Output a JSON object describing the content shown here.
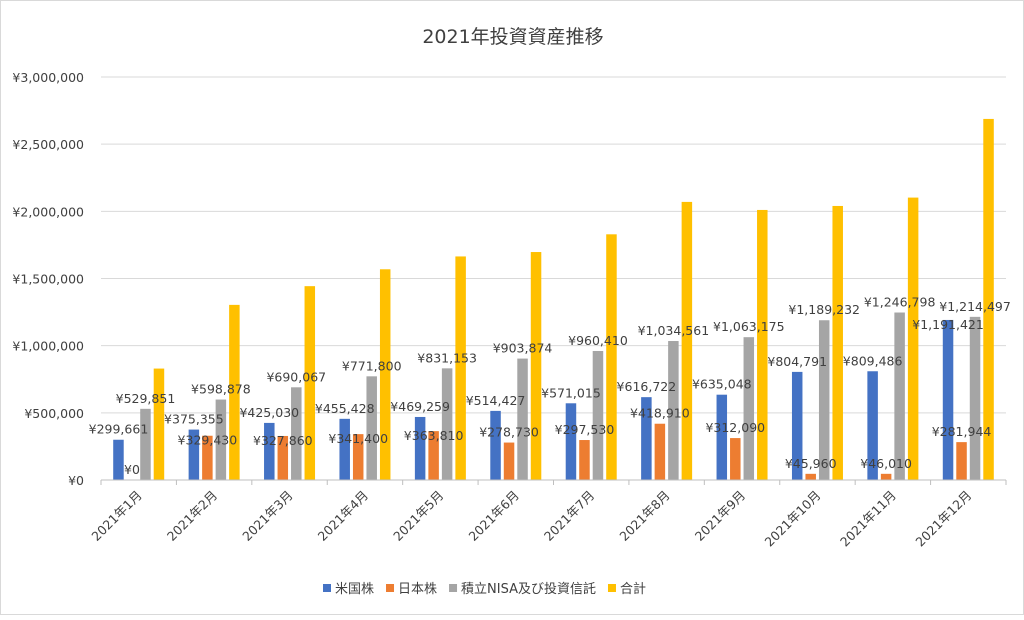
{
  "chart_data": {
    "type": "bar",
    "title": "2021年投資資産推移",
    "xlabel": "",
    "ylabel": "",
    "ylim": [
      0,
      3000000
    ],
    "y_ticks": [
      0,
      500000,
      1000000,
      1500000,
      2000000,
      2500000,
      3000000
    ],
    "y_tick_labels": [
      "¥0",
      "¥500,000",
      "¥1,000,000",
      "¥1,500,000",
      "¥2,000,000",
      "¥2,500,000",
      "¥3,000,000"
    ],
    "grid": true,
    "legend_position": "bottom",
    "categories": [
      "2021年1月",
      "2021年2月",
      "2021年3月",
      "2021年4月",
      "2021年5月",
      "2021年6月",
      "2021年7月",
      "2021年8月",
      "2021年9月",
      "2021年10月",
      "2021年11月",
      "2021年12月"
    ],
    "series": [
      {
        "name": "米国株",
        "color": "#4472c4",
        "labeled": true,
        "values": [
          299661,
          375355,
          425030,
          455428,
          469259,
          514427,
          571015,
          616722,
          635048,
          804791,
          809486,
          1191421
        ]
      },
      {
        "name": "日本株",
        "color": "#ed7d31",
        "labeled": true,
        "values": [
          0,
          329430,
          327860,
          341400,
          363810,
          278730,
          297530,
          418910,
          312090,
          45960,
          46010,
          281944
        ]
      },
      {
        "name": "積立NISA及び投資信託",
        "color": "#a5a5a5",
        "labeled": true,
        "values": [
          529851,
          598878,
          690067,
          771800,
          831153,
          903874,
          960410,
          1034561,
          1063175,
          1189232,
          1246798,
          1214497
        ]
      },
      {
        "name": "合計",
        "color": "#ffc000",
        "labeled": false,
        "values": [
          829512,
          1303663,
          1442957,
          1568628,
          1664222,
          1697031,
          1828955,
          2070193,
          2010313,
          2039983,
          2102294,
          2687862
        ]
      }
    ]
  }
}
